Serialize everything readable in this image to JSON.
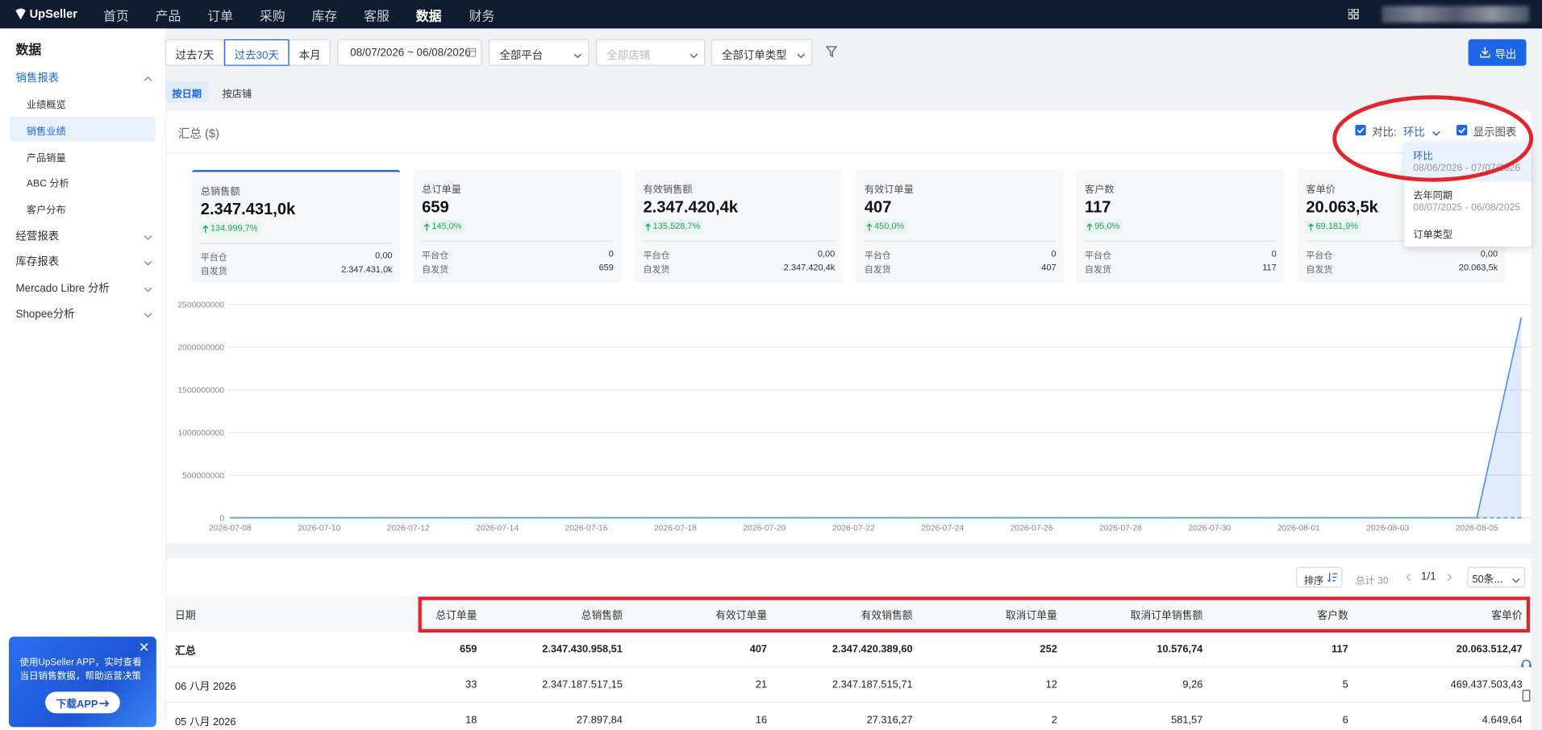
{
  "nav": {
    "logo": "UpSeller",
    "items": [
      "首页",
      "产品",
      "订单",
      "采购",
      "库存",
      "客服",
      "数据",
      "财务"
    ]
  },
  "sidebar": {
    "title": "数据",
    "groups": [
      {
        "label": "销售报表",
        "items": [
          "业绩概览",
          "销售业绩",
          "产品销量",
          "ABC 分析",
          "客户分布"
        ]
      },
      {
        "label": "经营报表"
      },
      {
        "label": "库存报表"
      },
      {
        "label": "Mercado Libre 分析"
      },
      {
        "label": "Shopee分析"
      }
    ]
  },
  "promo": {
    "text": "使用UpSeller APP，实时查看当日销售数据，帮助运营决策",
    "button": "下载APP"
  },
  "filters": {
    "ranges": [
      "过去7天",
      "过去30天",
      "本月"
    ],
    "date_range": "08/07/2026 ~ 06/08/2026",
    "platform": "全部平台",
    "store": "全部店铺",
    "order_type": "全部订单类型",
    "export": "导出"
  },
  "tabs": [
    "按日期",
    "按店铺"
  ],
  "summary": {
    "title": "汇总 ($)",
    "compare_label": "对比:",
    "compare_value": "环比",
    "show_chart": "显示图表",
    "dropdown": [
      {
        "label": "环比",
        "range": "08/06/2026 - 07/07/2026"
      },
      {
        "label": "去年同期",
        "range": "08/07/2025 - 06/08/2025"
      },
      {
        "label": "订单类型"
      }
    ],
    "kpis": [
      {
        "label": "总销售额",
        "value": "2.347.431,0k",
        "change": "134.999,7%",
        "rows": [
          [
            "平台仓",
            "0,00"
          ],
          [
            "自发货",
            "2.347.431,0k"
          ]
        ]
      },
      {
        "label": "总订单量",
        "value": "659",
        "change": "145,0%",
        "rows": [
          [
            "平台仓",
            "0"
          ],
          [
            "自发货",
            "659"
          ]
        ]
      },
      {
        "label": "有效销售额",
        "value": "2.347.420,4k",
        "change": "135.528,7%",
        "rows": [
          [
            "平台仓",
            "0,00"
          ],
          [
            "自发货",
            "2.347.420,4k"
          ]
        ]
      },
      {
        "label": "有效订单量",
        "value": "407",
        "change": "450,0%",
        "rows": [
          [
            "平台仓",
            "0"
          ],
          [
            "自发货",
            "407"
          ]
        ]
      },
      {
        "label": "客户数",
        "value": "117",
        "change": "95,0%",
        "rows": [
          [
            "平台仓",
            "0"
          ],
          [
            "自发货",
            "117"
          ]
        ]
      },
      {
        "label": "客单价",
        "value": "20.063,5k",
        "change": "69.181,9%",
        "rows": [
          [
            "平台仓",
            "0,00"
          ],
          [
            "自发货",
            "20.063,5k"
          ]
        ]
      }
    ]
  },
  "chart": {
    "type": "line",
    "x": [
      "2026-07-08",
      null,
      "2026-07-10",
      null,
      "2026-07-12",
      null,
      "2026-07-14",
      null,
      "2026-07-16",
      null,
      "2026-07-18",
      null,
      "2026-07-20",
      null,
      "2026-07-22",
      null,
      "2026-07-24",
      null,
      "2026-07-26",
      null,
      "2026-07-28",
      null,
      "2026-07-30",
      null,
      "2026-08-01",
      null,
      "2026-08-03",
      null,
      "2026-08-05",
      null
    ],
    "series": [
      {
        "color": "#5b8ff9",
        "area": true,
        "values": [
          7700,
          7700,
          7700,
          7700,
          7700,
          7700,
          7700,
          7700,
          7700,
          7700,
          7700,
          7700,
          7700,
          7700,
          7700,
          7700,
          7700,
          7700,
          7700,
          7700,
          7700,
          7700,
          7700,
          7700,
          7700,
          7700,
          7700,
          7700,
          27897.84,
          2347187517.15
        ]
      },
      {
        "color": "#4cb5a0",
        "dashed": true,
        "values": [
          0,
          0,
          0,
          0,
          0,
          0,
          0,
          0,
          0,
          0,
          0,
          0,
          0,
          0,
          0,
          0,
          0,
          0,
          0,
          0,
          0,
          0,
          0,
          0,
          0,
          0,
          0,
          0,
          0,
          0
        ]
      }
    ],
    "ylim": [
      0,
      2500000000
    ],
    "yticks": [
      0,
      500000000,
      1000000000,
      1500000000,
      2000000000,
      2500000000
    ],
    "grid": true
  },
  "table": {
    "sort": "排序",
    "total": "总计 30",
    "page": "1/1",
    "page_size": "50条...",
    "columns": [
      "日期",
      "总订单量",
      "总销售额",
      "有效订单量",
      "有效销售额",
      "取消订单量",
      "取消订单销售额",
      "客户数",
      "客单价"
    ],
    "rows": [
      [
        "汇总",
        "659",
        "2.347.430.958,51",
        "407",
        "2.347.420.389,60",
        "252",
        "10.576,74",
        "117",
        "20.063.512,47"
      ],
      [
        "06 八月 2026",
        "33",
        "2.347.187.517,15",
        "21",
        "2.347.187.515,71",
        "12",
        "9,26",
        "5",
        "469.437.503,43"
      ],
      [
        "05 八月 2026",
        "18",
        "27.897,84",
        "16",
        "27.316,27",
        "2",
        "581,57",
        "6",
        "4.649,64"
      ]
    ]
  }
}
